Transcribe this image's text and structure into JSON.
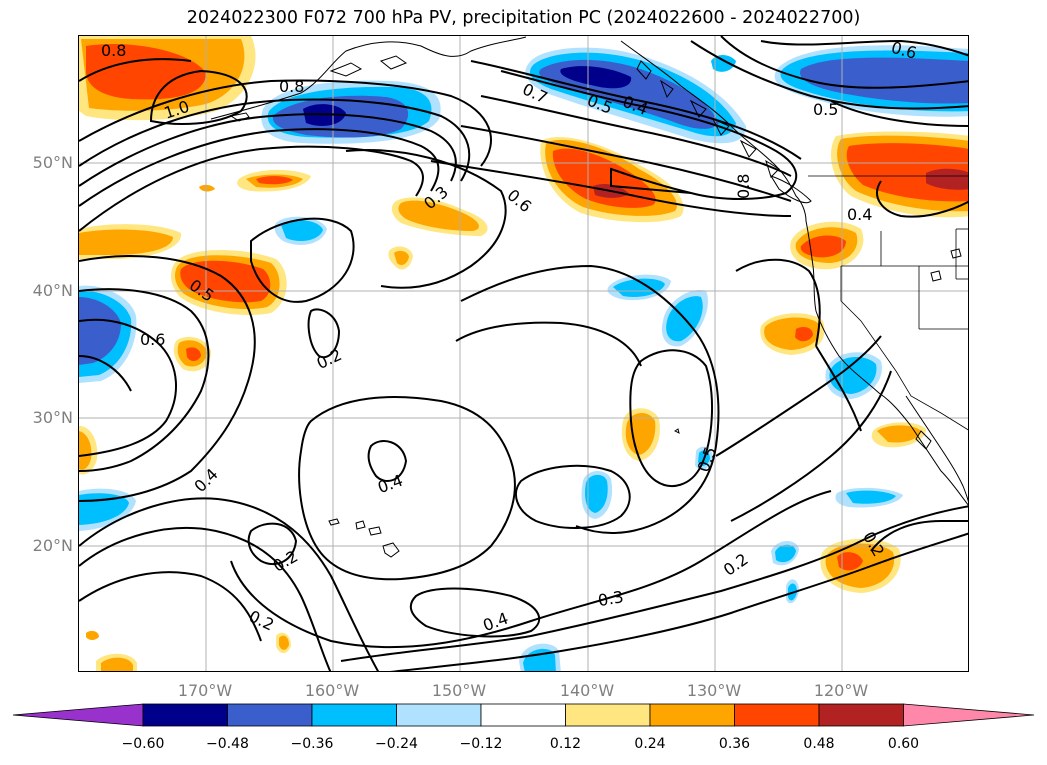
{
  "title": "2024022300 F072 700 hPa PV, precipitation PC (2024022600 - 2024022700)",
  "map": {
    "lat_labels": [
      "50°N",
      "40°N",
      "30°N",
      "20°N"
    ],
    "lon_labels": [
      "170°W",
      "160°W",
      "150°W",
      "140°W",
      "130°W",
      "120°W"
    ],
    "contour_labels": [
      "0.8",
      "1.0",
      "0.8",
      "0.7",
      "0.5",
      "0.4",
      "0.6",
      "0.5",
      "0.3",
      "0.6",
      "0.8",
      "0.4",
      "0.5",
      "0.6",
      "0.2",
      "0.4",
      "0.4",
      "0.5",
      "0.2",
      "0.2",
      "0.4",
      "0.3",
      "0.2",
      "0.2"
    ]
  },
  "colorbar": {
    "ticks": [
      "−0.60",
      "−0.48",
      "−0.36",
      "−0.24",
      "−0.12",
      "0.12",
      "0.24",
      "0.36",
      "0.48",
      "0.60"
    ],
    "colors": [
      "#9932cc",
      "#00008b",
      "#3a5fcd",
      "#00bfff",
      "#b0e2ff",
      "#ffffff",
      "#ffe680",
      "#ffa500",
      "#ff4500",
      "#b22222",
      "#ff88aa"
    ]
  }
}
